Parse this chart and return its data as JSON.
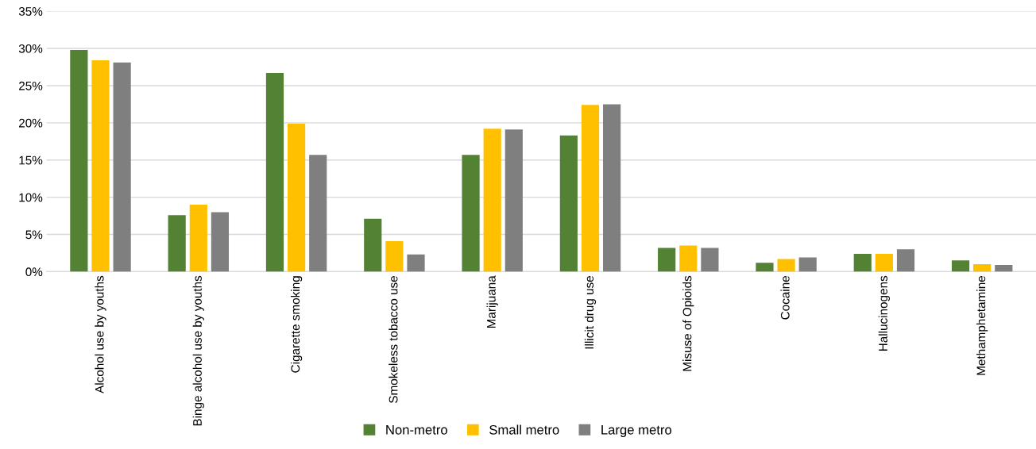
{
  "chart_data": {
    "type": "bar",
    "categories": [
      "Alcohol use by youths",
      "Binge alcohol use by youths",
      "Cigarette smoking",
      "Smokeless tobacco use",
      "Marijuana",
      "Illicit drug use",
      "Misuse of Opioids",
      "Cocaine",
      "Hallucinogens",
      "Methamphetamine"
    ],
    "series": [
      {
        "name": "Non-metro",
        "color": "#548235",
        "values": [
          29.8,
          7.6,
          26.7,
          7.1,
          15.7,
          18.3,
          3.2,
          1.2,
          2.4,
          1.5
        ]
      },
      {
        "name": "Small metro",
        "color": "#ffc000",
        "values": [
          28.4,
          9.0,
          19.9,
          4.1,
          19.2,
          22.4,
          3.5,
          1.7,
          2.4,
          1.0
        ]
      },
      {
        "name": "Large metro",
        "color": "#7f7f7f",
        "values": [
          28.1,
          8.0,
          15.7,
          2.3,
          19.1,
          22.5,
          3.2,
          1.9,
          3.0,
          0.9
        ]
      }
    ],
    "ylim": [
      0,
      35
    ],
    "yticks": [
      {
        "value": 0,
        "label": "0%"
      },
      {
        "value": 5,
        "label": "5%"
      },
      {
        "value": 10,
        "label": "10%"
      },
      {
        "value": 15,
        "label": "15%"
      },
      {
        "value": 20,
        "label": "20%"
      },
      {
        "value": 25,
        "label": "25%"
      },
      {
        "value": 30,
        "label": "30%"
      },
      {
        "value": 35,
        "label": "35%"
      }
    ],
    "grid": "y",
    "legend": "bottom"
  }
}
